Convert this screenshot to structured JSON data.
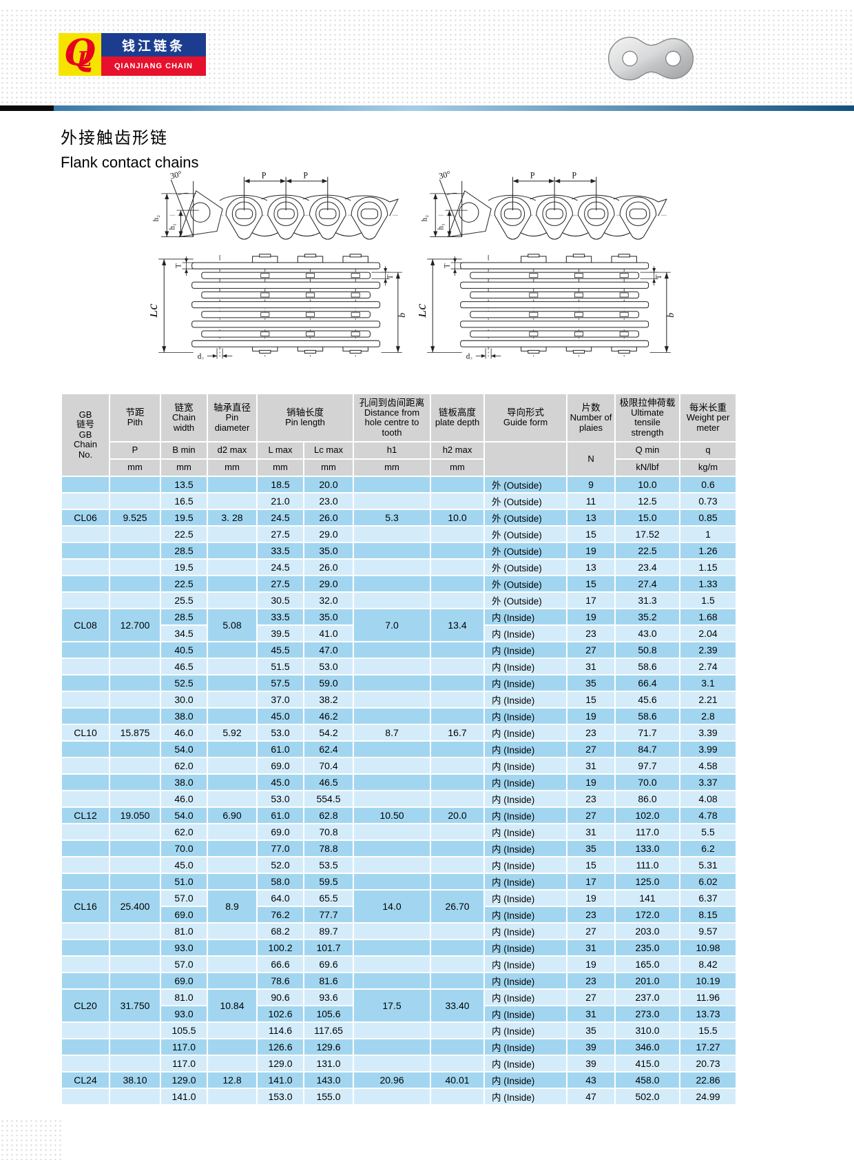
{
  "brand": {
    "monogram_q": "Q",
    "monogram_l": "L",
    "name_cn": "钱江链条",
    "name_en": "QIANJIANG CHAIN",
    "colors": {
      "blue": "#1c3d8f",
      "red": "#e8112d",
      "yellow": "#f6e400"
    }
  },
  "title": {
    "cn": "外接触齿形链",
    "en": "Flank contact chains"
  },
  "diagram_labels": {
    "angle": "30°",
    "p1": "P",
    "p2": "P",
    "h2": "h₂",
    "h1": "h₁",
    "lc": "Lc",
    "t_left": "T",
    "t_right": "T",
    "b": "b",
    "d2": "d₂"
  },
  "table": {
    "colors": {
      "row_dark": "#a2d6f0",
      "row_light": "#d4ecfa",
      "header_gray": "#d3d3d3"
    },
    "header": {
      "chain_no": "GB\n链号\nGB\nChain\nNo.",
      "cols": [
        {
          "cn": "节距",
          "en": "Pith",
          "sym": "P",
          "unit": "mm"
        },
        {
          "cn": "链宽",
          "en": "Chain width",
          "sym": "B min",
          "unit": "mm"
        },
        {
          "cn": "轴承直径",
          "en": "Pin diameter",
          "sym": "d2 max",
          "unit": "mm"
        },
        {
          "cn": "销轴长度",
          "en": "Pin length",
          "sym": "L max",
          "sym2": "Lc max",
          "unit": "mm",
          "unit2": "mm"
        },
        {
          "cn": "孔间到齿间距离",
          "en": "Distance from hole centre to tooth",
          "sym": "h1",
          "unit": "mm"
        },
        {
          "cn": "链板高度",
          "en": "plate depth",
          "sym": "h2 max",
          "unit": "mm"
        },
        {
          "cn": "导向形式",
          "en": "Guide form",
          "sym": "",
          "unit": ""
        },
        {
          "cn": "片数",
          "en": "Number of plaies",
          "sym": "N"
        },
        {
          "cn": "极限拉伸荷载",
          "en": "Ultimate tensile strength",
          "sym": "Q min",
          "unit": "kN/lbf"
        },
        {
          "cn": "每米长重",
          "en": "Weight per meter",
          "sym": "q",
          "unit": "kg/m"
        }
      ]
    },
    "groups": [
      {
        "chain_no": "CL06",
        "pitch": "9.525",
        "d2": "3. 28",
        "h1": "5.3",
        "h2": "10.0",
        "rows": [
          {
            "b": "13.5",
            "l": "18.5",
            "lc": "20.0",
            "guide": "外  (Outside)",
            "n": "9",
            "q_min": "10.0",
            "q": "0.6"
          },
          {
            "b": "16.5",
            "l": "21.0",
            "lc": "23.0",
            "guide": "外  (Outside)",
            "n": "11",
            "q_min": "12.5",
            "q": "0.73"
          },
          {
            "b": "19.5",
            "l": "24.5",
            "lc": "26.0",
            "guide": "外  (Outside)",
            "n": "13",
            "q_min": "15.0",
            "q": "0.85"
          },
          {
            "b": "22.5",
            "l": "27.5",
            "lc": "29.0",
            "guide": "外  (Outside)",
            "n": "15",
            "q_min": "17.52",
            "q": "1"
          },
          {
            "b": "28.5",
            "l": "33.5",
            "lc": "35.0",
            "guide": "外  (Outside)",
            "n": "19",
            "q_min": "22.5",
            "q": "1.26"
          }
        ]
      },
      {
        "chain_no": "CL08",
        "pitch": "12.700",
        "d2": "5.08",
        "h1": "7.0",
        "h2": "13.4",
        "rows": [
          {
            "b": "19.5",
            "l": "24.5",
            "lc": "26.0",
            "guide": "外  (Outside)",
            "n": "13",
            "q_min": "23.4",
            "q": "1.15"
          },
          {
            "b": "22.5",
            "l": "27.5",
            "lc": "29.0",
            "guide": "外  (Outside)",
            "n": "15",
            "q_min": "27.4",
            "q": "1.33"
          },
          {
            "b": "25.5",
            "l": "30.5",
            "lc": "32.0",
            "guide": "外  (Outside)",
            "n": "17",
            "q_min": "31.3",
            "q": "1.5"
          },
          {
            "b": "28.5",
            "l": "33.5",
            "lc": "35.0",
            "guide": "内  (Inside)",
            "n": "19",
            "q_min": "35.2",
            "q": "1.68"
          },
          {
            "b": "34.5",
            "l": "39.5",
            "lc": "41.0",
            "guide": "内  (Inside)",
            "n": "23",
            "q_min": "43.0",
            "q": "2.04"
          },
          {
            "b": "40.5",
            "l": "45.5",
            "lc": "47.0",
            "guide": "内  (Inside)",
            "n": "27",
            "q_min": "50.8",
            "q": "2.39"
          },
          {
            "b": "46.5",
            "l": "51.5",
            "lc": "53.0",
            "guide": "内  (Inside)",
            "n": "31",
            "q_min": "58.6",
            "q": "2.74"
          },
          {
            "b": "52.5",
            "l": "57.5",
            "lc": "59.0",
            "guide": "内  (Inside)",
            "n": "35",
            "q_min": "66.4",
            "q": "3.1"
          }
        ]
      },
      {
        "chain_no": "CL10",
        "pitch": "15.875",
        "d2": "5.92",
        "h1": "8.7",
        "h2": "16.7",
        "rows": [
          {
            "b": "30.0",
            "l": "37.0",
            "lc": "38.2",
            "guide": "内  (Inside)",
            "n": "15",
            "q_min": "45.6",
            "q": "2.21"
          },
          {
            "b": "38.0",
            "l": "45.0",
            "lc": "46.2",
            "guide": "内  (Inside)",
            "n": "19",
            "q_min": "58.6",
            "q": "2.8"
          },
          {
            "b": "46.0",
            "l": "53.0",
            "lc": "54.2",
            "guide": "内  (Inside)",
            "n": "23",
            "q_min": "71.7",
            "q": "3.39"
          },
          {
            "b": "54.0",
            "l": "61.0",
            "lc": "62.4",
            "guide": "内  (Inside)",
            "n": "27",
            "q_min": "84.7",
            "q": "3.99"
          },
          {
            "b": "62.0",
            "l": "69.0",
            "lc": "70.4",
            "guide": "内  (Inside)",
            "n": "31",
            "q_min": "97.7",
            "q": "4.58"
          }
        ]
      },
      {
        "chain_no": "CL12",
        "pitch": "19.050",
        "d2": "6.90",
        "h1": "10.50",
        "h2": "20.0",
        "rows": [
          {
            "b": "38.0",
            "l": "45.0",
            "lc": "46.5",
            "guide": "内  (Inside)",
            "n": "19",
            "q_min": "70.0",
            "q": "3.37"
          },
          {
            "b": "46.0",
            "l": "53.0",
            "lc": "554.5",
            "guide": "内  (Inside)",
            "n": "23",
            "q_min": "86.0",
            "q": "4.08"
          },
          {
            "b": "54.0",
            "l": "61.0",
            "lc": "62.8",
            "guide": "内  (Inside)",
            "n": "27",
            "q_min": "102.0",
            "q": "4.78"
          },
          {
            "b": "62.0",
            "l": "69.0",
            "lc": "70.8",
            "guide": "内  (Inside)",
            "n": "31",
            "q_min": "117.0",
            "q": "5.5"
          },
          {
            "b": "70.0",
            "l": "77.0",
            "lc": "78.8",
            "guide": "内  (Inside)",
            "n": "35",
            "q_min": "133.0",
            "q": "6.2"
          }
        ]
      },
      {
        "chain_no": "CL16",
        "pitch": "25.400",
        "d2": "8.9",
        "h1": "14.0",
        "h2": "26.70",
        "rows": [
          {
            "b": "45.0",
            "l": "52.0",
            "lc": "53.5",
            "guide": "内  (Inside)",
            "n": "15",
            "q_min": "111.0",
            "q": "5.31"
          },
          {
            "b": "51.0",
            "l": "58.0",
            "lc": "59.5",
            "guide": "内  (Inside)",
            "n": "17",
            "q_min": "125.0",
            "q": "6.02"
          },
          {
            "b": "57.0",
            "l": "64.0",
            "lc": "65.5",
            "guide": "内  (Inside)",
            "n": "19",
            "q_min": "141",
            "q": "6.37"
          },
          {
            "b": "69.0",
            "l": "76.2",
            "lc": "77.7",
            "guide": "内  (Inside)",
            "n": "23",
            "q_min": "172.0",
            "q": "8.15"
          },
          {
            "b": "81.0",
            "l": "68.2",
            "lc": "89.7",
            "guide": "内  (Inside)",
            "n": "27",
            "q_min": "203.0",
            "q": "9.57"
          },
          {
            "b": "93.0",
            "l": "100.2",
            "lc": "101.7",
            "guide": "内  (Inside)",
            "n": "31",
            "q_min": "235.0",
            "q": "10.98"
          }
        ]
      },
      {
        "chain_no": "CL20",
        "pitch": "31.750",
        "d2": "10.84",
        "h1": "17.5",
        "h2": "33.40",
        "rows": [
          {
            "b": "57.0",
            "l": "66.6",
            "lc": "69.6",
            "guide": "内  (Inside)",
            "n": "19",
            "q_min": "165.0",
            "q": "8.42"
          },
          {
            "b": "69.0",
            "l": "78.6",
            "lc": "81.6",
            "guide": "内  (Inside)",
            "n": "23",
            "q_min": "201.0",
            "q": "10.19"
          },
          {
            "b": "81.0",
            "l": "90.6",
            "lc": "93.6",
            "guide": "内  (Inside)",
            "n": "27",
            "q_min": "237.0",
            "q": "11.96"
          },
          {
            "b": "93.0",
            "l": "102.6",
            "lc": "105.6",
            "guide": "内  (Inside)",
            "n": "31",
            "q_min": "273.0",
            "q": "13.73"
          },
          {
            "b": "105.5",
            "l": "114.6",
            "lc": "117.65",
            "guide": "内  (Inside)",
            "n": "35",
            "q_min": "310.0",
            "q": "15.5"
          },
          {
            "b": "117.0",
            "l": "126.6",
            "lc": "129.6",
            "guide": "内  (Inside)",
            "n": "39",
            "q_min": "346.0",
            "q": "17.27"
          }
        ]
      },
      {
        "chain_no": "CL24",
        "pitch": "38.10",
        "d2": "12.8",
        "h1": "20.96",
        "h2": "40.01",
        "rows": [
          {
            "b": "117.0",
            "l": "129.0",
            "lc": "131.0",
            "guide": "内  (Inside)",
            "n": "39",
            "q_min": "415.0",
            "q": "20.73"
          },
          {
            "b": "129.0",
            "l": "141.0",
            "lc": "143.0",
            "guide": "内  (Inside)",
            "n": "43",
            "q_min": "458.0",
            "q": "22.86"
          },
          {
            "b": "141.0",
            "l": "153.0",
            "lc": "155.0",
            "guide": "内  (Inside)",
            "n": "47",
            "q_min": "502.0",
            "q": "24.99"
          }
        ]
      }
    ]
  }
}
